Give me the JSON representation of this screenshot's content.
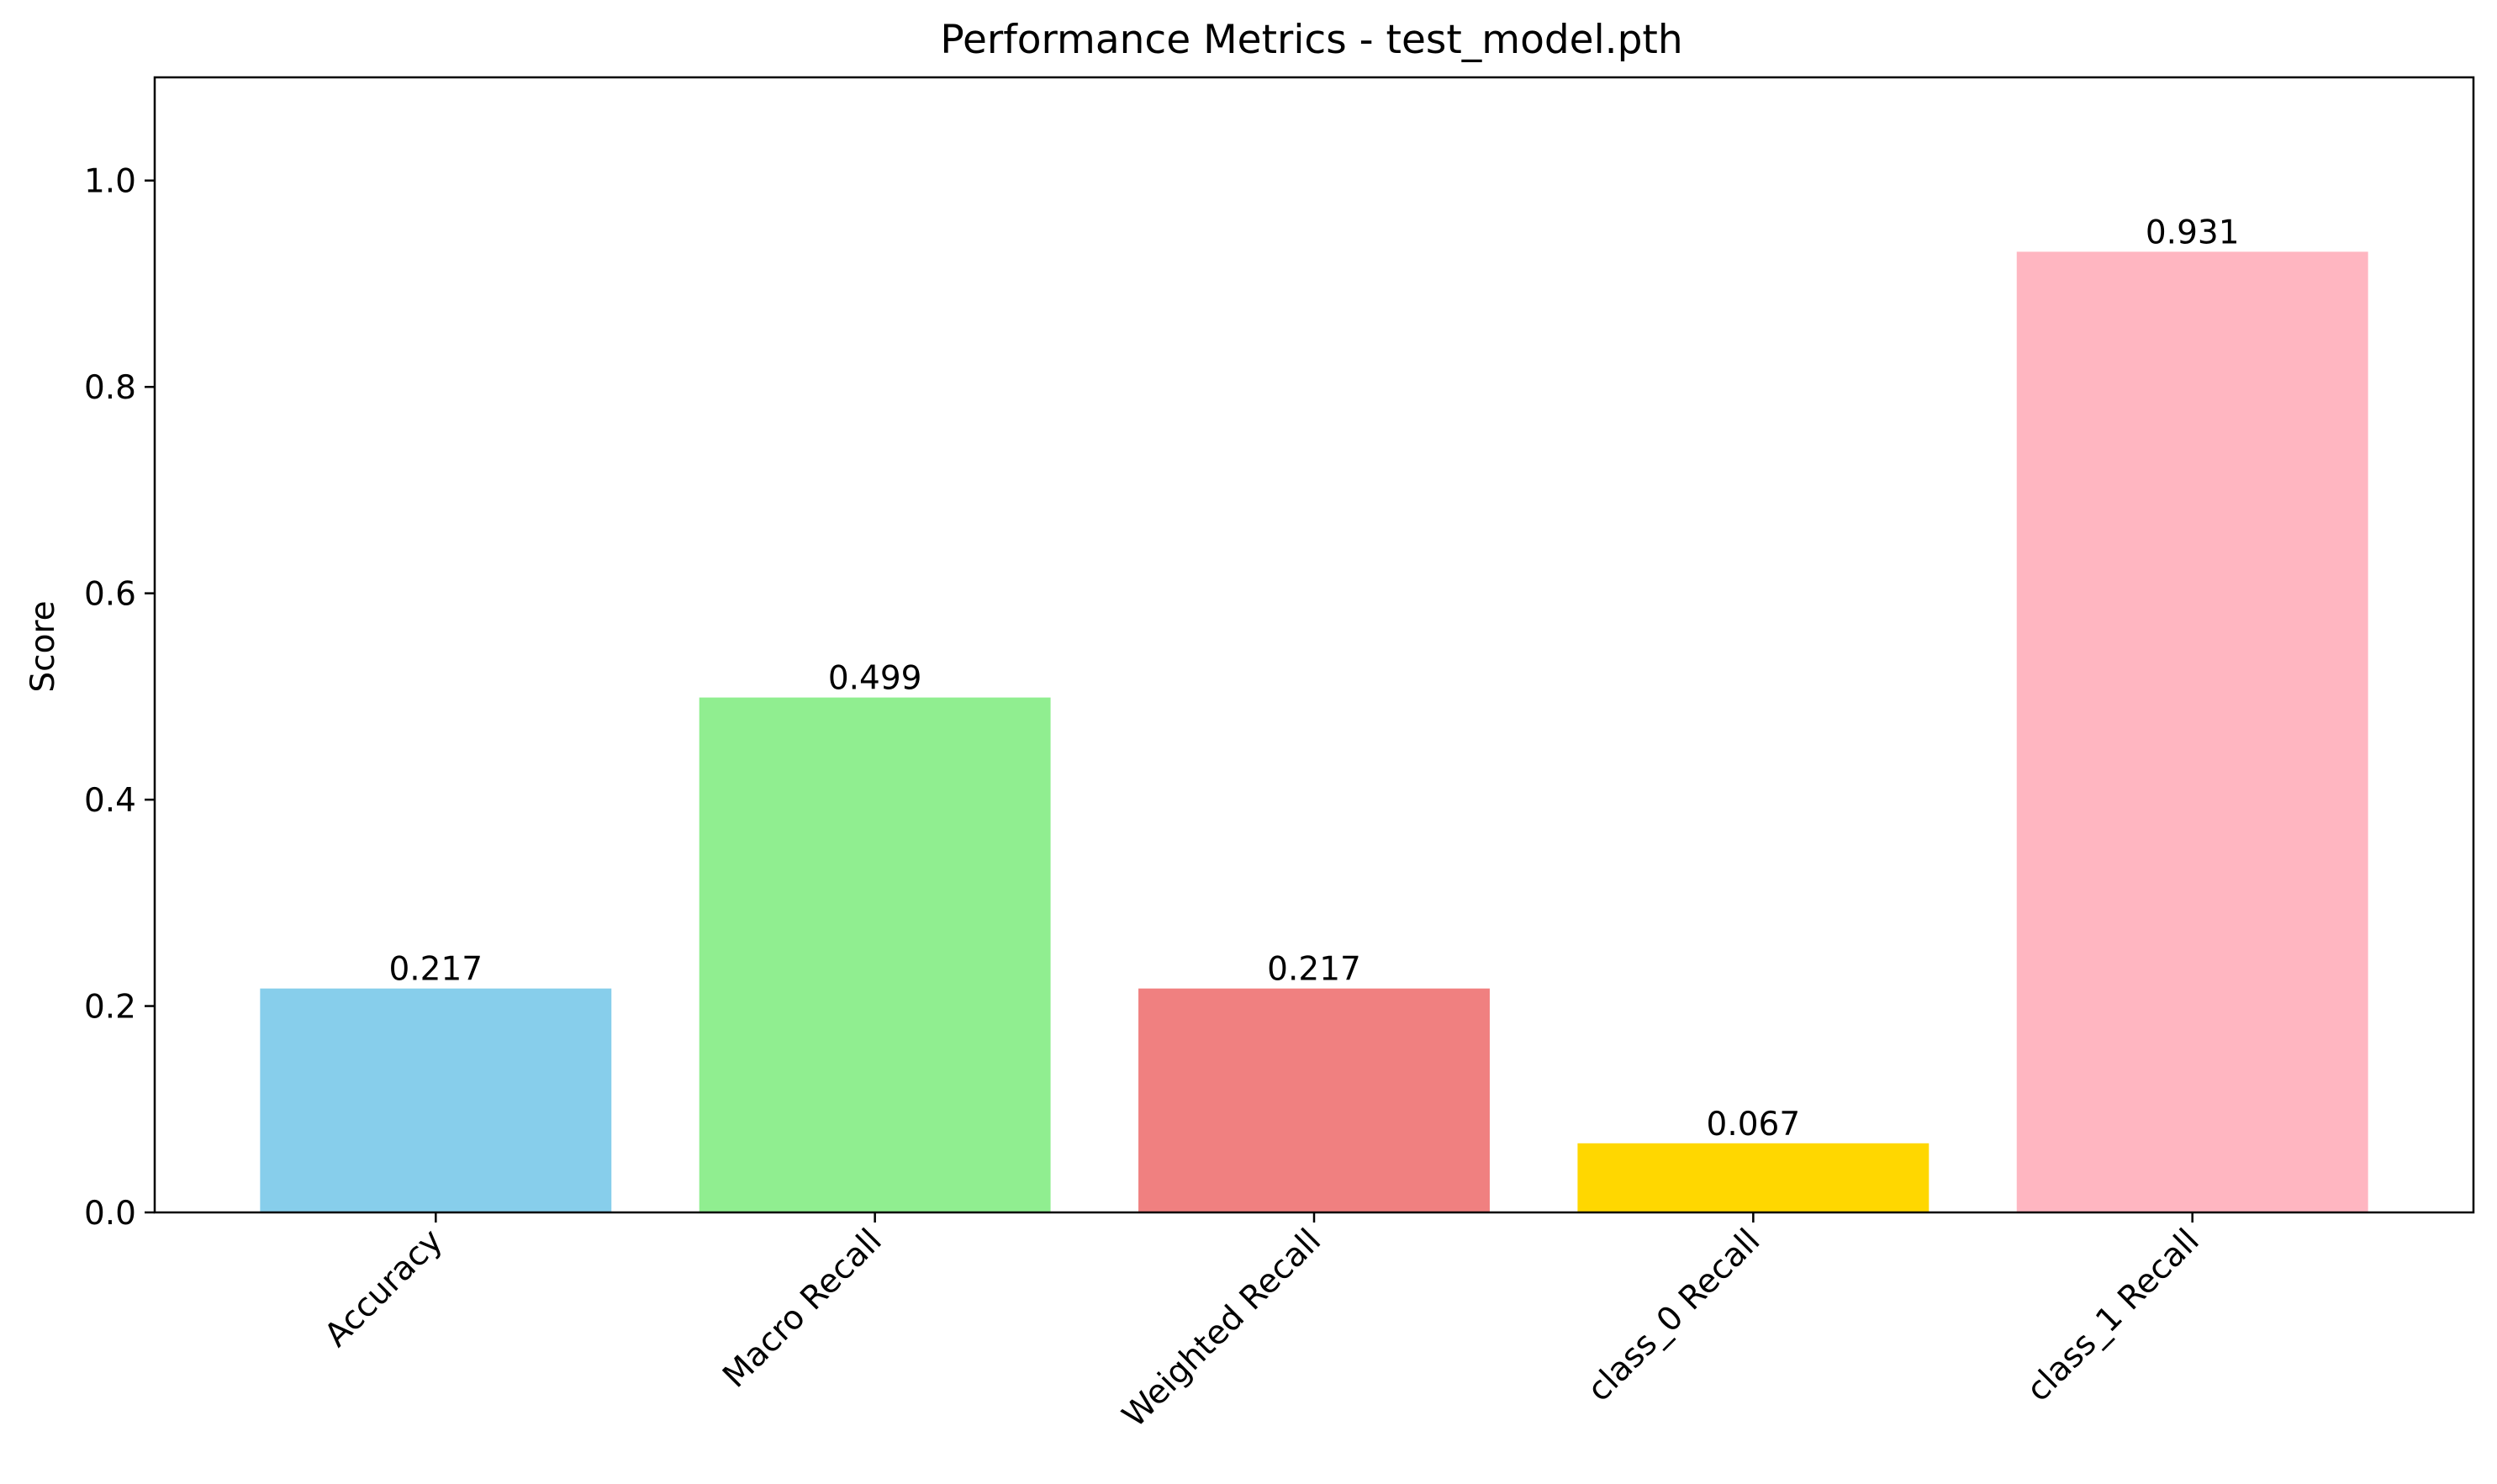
{
  "chart_data": {
    "type": "bar",
    "title": "Performance Metrics - test_model.pth",
    "xlabel": "",
    "ylabel": "Score",
    "categories": [
      "Accuracy",
      "Macro Recall",
      "Weighted Recall",
      "class_0 Recall",
      "class_1 Recall"
    ],
    "values": [
      0.217,
      0.499,
      0.217,
      0.067,
      0.931
    ],
    "value_labels": [
      "0.217",
      "0.499",
      "0.217",
      "0.067",
      "0.931"
    ],
    "colors": [
      "#87ceeb",
      "#90ee90",
      "#f08080",
      "#ffd700",
      "#ffb6c1"
    ],
    "ylim": [
      0,
      1.1
    ],
    "yticks": [
      0.0,
      0.2,
      0.4,
      0.6,
      0.8,
      1.0
    ],
    "ytick_labels": [
      "0.0",
      "0.2",
      "0.4",
      "0.6",
      "0.8",
      "1.0"
    ],
    "grid": false,
    "legend": false
  }
}
